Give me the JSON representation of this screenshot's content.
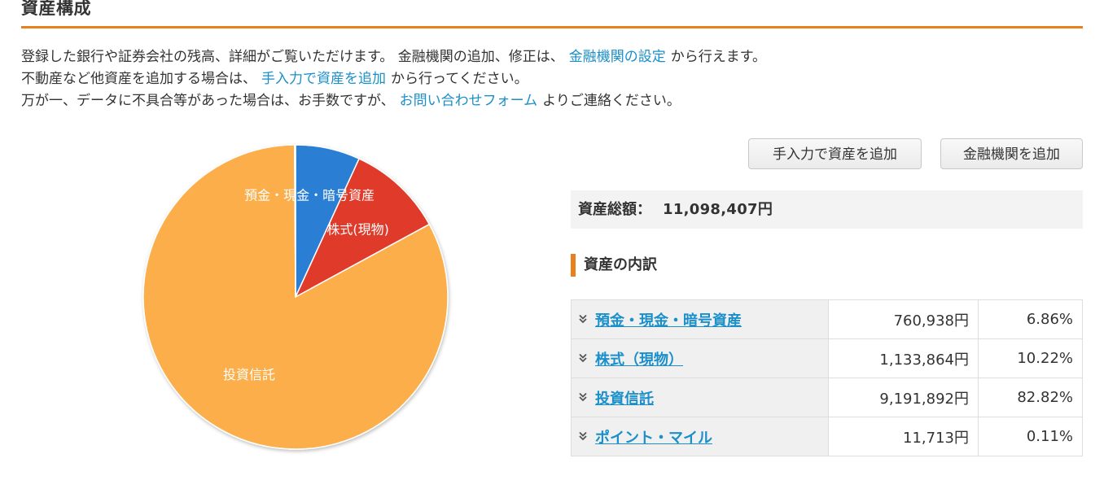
{
  "page": {
    "title": "資産構成"
  },
  "intro": {
    "line1_before": "登録した銀行や証券会社の残高、詳細がご覧いただけます。 金融機関の追加、修正は、",
    "line1_link": "金融機関の設定",
    "line1_after": "から行えます。",
    "line2_before": "不動産など他資産を追加する場合は、",
    "line2_link": "手入力で資産を追加",
    "line2_after": "から行ってください。",
    "line3_before": "万が一、データに不具合等があった場合は、お手数ですが、",
    "line3_link": "お問い合わせフォーム",
    "line3_after": "よりご連絡ください。"
  },
  "buttons": {
    "add_manual": "手入力で資産を追加",
    "add_institution": "金融機関を追加"
  },
  "summary": {
    "total_label": "資産総額：",
    "total_value": "11,098,407円"
  },
  "breakdown": {
    "heading": "資産の内訳",
    "rows": [
      {
        "name": "預金・現金・暗号資産",
        "amount": "760,938円",
        "percent": "6.86%"
      },
      {
        "name": "株式（現物）",
        "amount": "1,133,864円",
        "percent": "10.22%"
      },
      {
        "name": "投資信託",
        "amount": "9,191,892円",
        "percent": "82.82%"
      },
      {
        "name": "ポイント・マイル",
        "amount": "11,713円",
        "percent": "0.11%"
      }
    ]
  },
  "icons": {
    "row_expand": "double-chevron-down-icon"
  },
  "colors": {
    "accent": "#e8801f",
    "link": "#1a8fc9",
    "slice_deposit": "#2a7fd4",
    "slice_stock": "#e03a2b",
    "slice_fund": "#fbae4a",
    "slice_points": "#7cc24b"
  },
  "chart_data": {
    "type": "pie",
    "categories": [
      "預金・現金・暗号資産",
      "株式(現物)",
      "投資信託",
      ""
    ],
    "values": [
      760938,
      1133864,
      9191892,
      11713
    ],
    "percent": [
      6.86,
      10.22,
      82.82,
      0.11
    ],
    "slice_labels": [
      "預金・現金・暗号資産",
      "株式(現物)",
      "投資信託",
      ""
    ],
    "colors": [
      "#2a7fd4",
      "#e03a2b",
      "#fbae4a",
      "#7cc24b"
    ],
    "start_angle": "12 o'clock",
    "direction": "clockwise",
    "legend": "none"
  }
}
